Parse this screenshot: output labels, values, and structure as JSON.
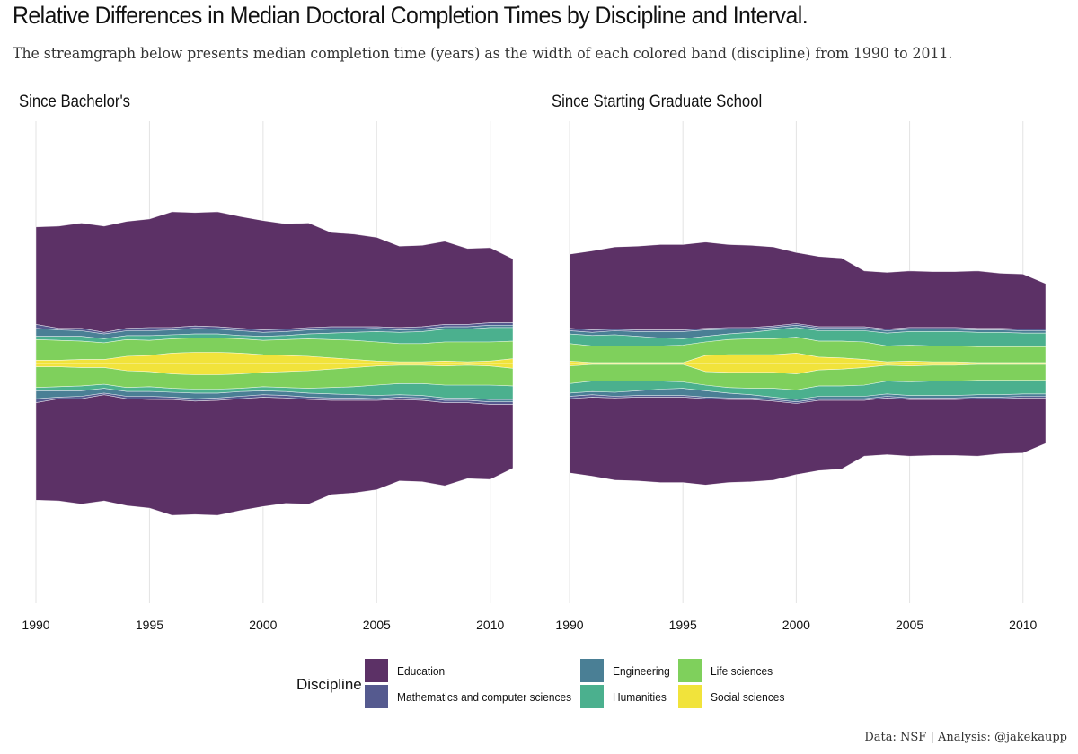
{
  "title": "Relative Differences in Median Doctoral Completion Times by Discipline and Interval.",
  "subtitle": "The streamgraph below presents median completion time (years) as the width of each colored band (discipline) from 1990 to 2011.",
  "caption": "Data: NSF | Analysis: @jakekaupp",
  "legend_title": "Discipline",
  "colors": {
    "Education": "#5c3166",
    "Mathematics and computer sciences": "#555a8f",
    "Engineering": "#4a7f95",
    "Humanities": "#4bb08e",
    "Life sciences": "#7fd05c",
    "Social sciences": "#f1e33b"
  },
  "legend_items": [
    "Education",
    "Mathematics and computer sciences",
    "Engineering",
    "Humanities",
    "Life sciences",
    "Social sciences"
  ],
  "chart_data": [
    {
      "type": "area",
      "subtype": "streamgraph",
      "title": "Since Bachelor's",
      "xlim": [
        1990,
        2011
      ],
      "xticks": [
        1990,
        1995,
        2000,
        2005,
        2010
      ],
      "x": [
        1990,
        1991,
        1992,
        1993,
        1994,
        1995,
        1996,
        1997,
        1998,
        1999,
        2000,
        2001,
        2002,
        2003,
        2004,
        2005,
        2006,
        2007,
        2008,
        2009,
        2010,
        2011
      ],
      "series": [
        {
          "name": "Education",
          "values": [
            12.2,
            12.8,
            13.2,
            13.3,
            13.4,
            13.6,
            14.5,
            14.2,
            14.4,
            14.0,
            13.7,
            13.2,
            13.1,
            11.8,
            11.6,
            11.2,
            10.2,
            10.2,
            10.4,
            9.5,
            9.4,
            8.0
          ]
        },
        {
          "name": "Mathematics and computer sciences",
          "values": [
            0.5,
            0.2,
            0.3,
            0.2,
            0.3,
            0.4,
            0.3,
            0.3,
            0.3,
            0.3,
            0.3,
            0.3,
            0.3,
            0.3,
            0.3,
            0.2,
            0.3,
            0.3,
            0.3,
            0.3,
            0.3,
            0.3
          ]
        },
        {
          "name": "Engineering",
          "values": [
            1.0,
            0.8,
            0.7,
            0.6,
            0.6,
            0.6,
            0.6,
            0.7,
            0.6,
            0.6,
            0.5,
            0.5,
            0.5,
            0.5,
            0.4,
            0.4,
            0.3,
            0.3,
            0.3,
            0.3,
            0.3,
            0.3
          ]
        },
        {
          "name": "Humanities",
          "values": [
            0.4,
            0.5,
            0.6,
            0.5,
            0.5,
            0.6,
            0.5,
            0.5,
            0.5,
            0.4,
            0.5,
            0.5,
            0.6,
            0.8,
            1.0,
            1.3,
            1.4,
            1.5,
            1.6,
            1.6,
            1.8,
            1.7
          ]
        },
        {
          "name": "Life sciences",
          "values": [
            2.6,
            2.5,
            2.3,
            2.1,
            2.1,
            1.9,
            1.8,
            1.8,
            1.8,
            1.8,
            1.8,
            2.0,
            2.2,
            2.3,
            2.4,
            2.4,
            2.3,
            2.3,
            2.4,
            2.5,
            2.4,
            2.2
          ]
        },
        {
          "name": "Social sciences",
          "values": [
            0.4,
            0.4,
            0.5,
            0.5,
            0.9,
            1.0,
            1.3,
            1.4,
            1.4,
            1.3,
            1.1,
            1.0,
            0.9,
            0.7,
            0.5,
            0.3,
            0.2,
            0.2,
            0.3,
            0.2,
            0.3,
            0.6
          ]
        }
      ]
    },
    {
      "type": "area",
      "subtype": "streamgraph",
      "title": "Since Starting Graduate School",
      "xlim": [
        1990,
        2011
      ],
      "xticks": [
        1990,
        1995,
        2000,
        2005,
        2010
      ],
      "x": [
        1990,
        1991,
        1992,
        1993,
        1994,
        1995,
        1996,
        1997,
        1998,
        1999,
        2000,
        2001,
        2002,
        2003,
        2004,
        2005,
        2006,
        2007,
        2008,
        2009,
        2010,
        2011
      ],
      "series": [
        {
          "name": "Education",
          "values": [
            9.3,
            9.9,
            10.3,
            10.5,
            10.7,
            10.7,
            10.8,
            10.4,
            10.3,
            9.9,
            8.9,
            8.8,
            8.6,
            7.0,
            7.1,
            7.1,
            7.0,
            7.0,
            7.2,
            6.9,
            6.9,
            5.7
          ]
        },
        {
          "name": "Mathematics and computer sciences",
          "values": [
            0.3,
            0.3,
            0.2,
            0.2,
            0.2,
            0.2,
            0.2,
            0.2,
            0.2,
            0.2,
            0.2,
            0.2,
            0.2,
            0.2,
            0.2,
            0.2,
            0.2,
            0.2,
            0.2,
            0.2,
            0.2,
            0.2
          ]
        },
        {
          "name": "Engineering",
          "values": [
            0.4,
            0.4,
            0.5,
            0.6,
            0.8,
            0.9,
            0.8,
            0.6,
            0.4,
            0.3,
            0.3,
            0.3,
            0.3,
            0.3,
            0.3,
            0.3,
            0.3,
            0.3,
            0.3,
            0.3,
            0.3,
            0.3
          ]
        },
        {
          "name": "Humanities",
          "values": [
            1.2,
            1.3,
            1.4,
            1.2,
            1.0,
            0.8,
            0.7,
            0.7,
            0.8,
            1.1,
            1.2,
            1.3,
            1.3,
            1.4,
            1.6,
            1.7,
            1.8,
            1.8,
            1.8,
            1.8,
            1.7,
            1.7
          ]
        },
        {
          "name": "Life sciences",
          "values": [
            2.2,
            2.1,
            2.1,
            2.1,
            2.1,
            2.2,
            1.7,
            1.9,
            2.0,
            2.0,
            2.0,
            2.0,
            2.1,
            2.2,
            2.0,
            2.0,
            2.0,
            2.0,
            2.0,
            2.0,
            2.0,
            2.0
          ]
        },
        {
          "name": "Social sciences",
          "values": [
            0.3,
            0.1,
            0.1,
            0.1,
            0.1,
            0.1,
            1.0,
            1.1,
            1.1,
            1.1,
            1.3,
            0.8,
            0.7,
            0.5,
            0.2,
            0.3,
            0.2,
            0.2,
            0.1,
            0.1,
            0.1,
            0.1
          ]
        }
      ]
    }
  ]
}
